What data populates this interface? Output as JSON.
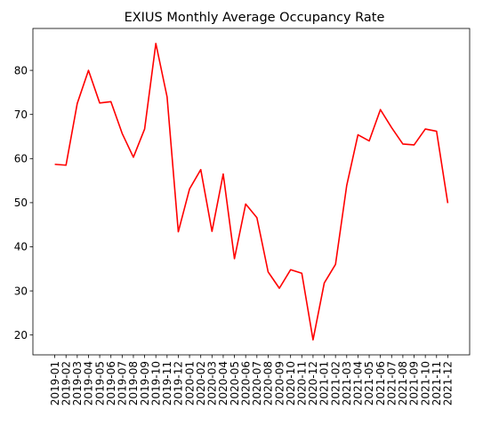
{
  "chart_data": {
    "type": "line",
    "title": "EXIUS Monthly Average Occupancy Rate",
    "xlabel": "",
    "ylabel": "",
    "x": [
      "2019-01",
      "2019-02",
      "2019-03",
      "2019-04",
      "2019-05",
      "2019-06",
      "2019-07",
      "2019-08",
      "2019-09",
      "2019-10",
      "2019-11",
      "2019-12",
      "2020-01",
      "2020-02",
      "2020-03",
      "2020-04",
      "2020-05",
      "2020-06",
      "2020-07",
      "2020-08",
      "2020-09",
      "2020-10",
      "2020-11",
      "2020-12",
      "2021-01",
      "2021-02",
      "2021-03",
      "2021-04",
      "2021-05",
      "2021-06",
      "2021-07",
      "2021-08",
      "2021-09",
      "2021-10",
      "2021-11",
      "2021-12"
    ],
    "series": [
      {
        "color": "#ff0000",
        "values": [
          58.7,
          58.5,
          72.5,
          80.0,
          72.6,
          72.9,
          65.7,
          60.3,
          66.7,
          86.1,
          74.0,
          43.4,
          53.1,
          57.5,
          43.5,
          56.5,
          37.3,
          49.7,
          46.6,
          34.3,
          30.6,
          34.8,
          34.0,
          18.9,
          31.8,
          36.0,
          53.9,
          65.4,
          64.0,
          71.1,
          67.0,
          63.3,
          63.1,
          66.7,
          66.2,
          49.9
        ]
      }
    ],
    "yticks": [
      20,
      30,
      40,
      50,
      60,
      70,
      80
    ],
    "ylim": [
      15.5,
      89.5
    ],
    "grid": false,
    "legend": "none"
  }
}
